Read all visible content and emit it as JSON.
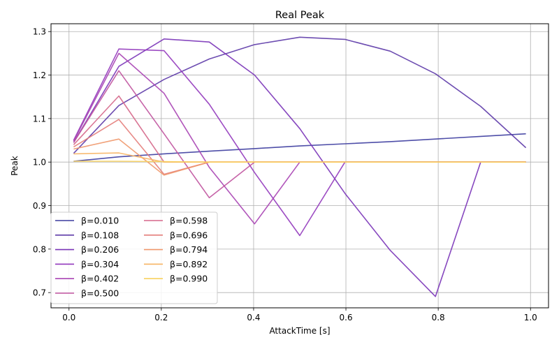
{
  "chart_data": {
    "type": "line",
    "title": "Real Peak",
    "xlabel": "AttackTime [s]",
    "ylabel": "Peak",
    "xlim": [
      -0.039,
      1.039
    ],
    "ylim": [
      0.665,
      1.318
    ],
    "xticks": [
      {
        "value": 0.0,
        "label": "0.0"
      },
      {
        "value": 0.2,
        "label": "0.2"
      },
      {
        "value": 0.4,
        "label": "0.4"
      },
      {
        "value": 0.6,
        "label": "0.6"
      },
      {
        "value": 0.8,
        "label": "0.8"
      },
      {
        "value": 1.0,
        "label": "1.0"
      }
    ],
    "yticks": [
      {
        "value": 0.7,
        "label": "0.7"
      },
      {
        "value": 0.8,
        "label": "0.8"
      },
      {
        "value": 0.9,
        "label": "0.9"
      },
      {
        "value": 1.0,
        "label": "1.0"
      },
      {
        "value": 1.1,
        "label": "1.1"
      },
      {
        "value": 1.2,
        "label": "1.2"
      },
      {
        "value": 1.3,
        "label": "1.3"
      }
    ],
    "grid": true,
    "legend": {
      "placement": "lower-left",
      "columns": 2
    },
    "x": [
      0.01,
      0.108,
      0.206,
      0.304,
      0.402,
      0.5,
      0.598,
      0.696,
      0.794,
      0.892,
      0.99
    ],
    "series": [
      {
        "name": "β=0.010",
        "color": "#3b3b9e",
        "values": [
          1.002,
          1.012,
          1.019,
          1.025,
          1.031,
          1.037,
          1.042,
          1.047,
          1.053,
          1.059,
          1.065
        ]
      },
      {
        "name": "β=0.108",
        "color": "#5d3aa8",
        "values": [
          1.02,
          1.13,
          1.19,
          1.237,
          1.27,
          1.287,
          1.282,
          1.255,
          1.203,
          1.128,
          1.033
        ]
      },
      {
        "name": "β=0.206",
        "color": "#7a34b8",
        "values": [
          1.045,
          1.22,
          1.283,
          1.276,
          1.2,
          1.077,
          0.928,
          0.797,
          0.691,
          1.0,
          1.0
        ]
      },
      {
        "name": "β=0.304",
        "color": "#9238bd",
        "values": [
          1.05,
          1.26,
          1.256,
          1.133,
          0.976,
          0.831,
          1.0,
          1.0,
          1.0,
          1.0,
          1.0
        ]
      },
      {
        "name": "β=0.402",
        "color": "#a944b4",
        "values": [
          1.048,
          1.25,
          1.158,
          0.988,
          0.858,
          1.0,
          1.0,
          1.0,
          1.0,
          1.0,
          1.0
        ]
      },
      {
        "name": "β=0.500",
        "color": "#c0539f",
        "values": [
          1.045,
          1.21,
          1.065,
          0.918,
          1.0,
          1.0,
          1.0,
          1.0,
          1.0,
          1.0,
          1.0
        ]
      },
      {
        "name": "β=0.598",
        "color": "#d5678a",
        "values": [
          1.04,
          1.152,
          1.0,
          1.0,
          1.0,
          1.0,
          1.0,
          1.0,
          1.0,
          1.0,
          1.0
        ]
      },
      {
        "name": "β=0.696",
        "color": "#e47d7a",
        "values": [
          1.035,
          1.098,
          0.972,
          1.0,
          1.0,
          1.0,
          1.0,
          1.0,
          1.0,
          1.0,
          1.0
        ]
      },
      {
        "name": "β=0.794",
        "color": "#f0986c",
        "values": [
          1.03,
          1.053,
          0.97,
          1.0,
          1.0,
          1.0,
          1.0,
          1.0,
          1.0,
          1.0,
          1.0
        ]
      },
      {
        "name": "β=0.892",
        "color": "#f7b463",
        "values": [
          1.019,
          1.021,
          1.0,
          1.0,
          1.0,
          1.0,
          1.0,
          1.0,
          1.0,
          1.0,
          1.0
        ]
      },
      {
        "name": "β=0.990",
        "color": "#f8d25e",
        "values": [
          1.002,
          1.002,
          1.001,
          1.0,
          1.0,
          1.0,
          1.0,
          1.0,
          1.0,
          1.0,
          1.0
        ]
      }
    ]
  }
}
